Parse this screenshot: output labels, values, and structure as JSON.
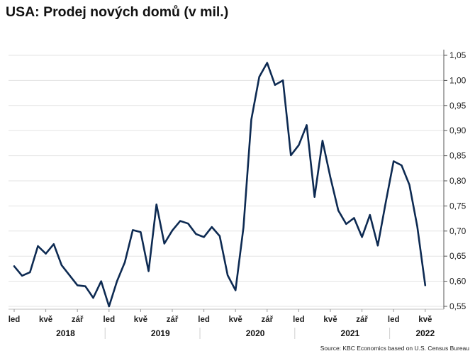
{
  "title": "USA: Prodej nových domů (v mil.)",
  "source": "Source: KBC Economics based on U.S. Census Bureau",
  "chart_data": {
    "type": "line",
    "title": "USA: Prodej nových domů (v mil.)",
    "line_color": "#0d2a52",
    "ylim": [
      0.55,
      1.05
    ],
    "y_ticks": [
      "0,55",
      "0,60",
      "0,65",
      "0,70",
      "0,75",
      "0,80",
      "0,85",
      "0,90",
      "0,95",
      "1,00",
      "1,05"
    ],
    "grid": true,
    "x_tick_labels": [
      {
        "index": 0,
        "label": "led"
      },
      {
        "index": 4,
        "label": "kvě"
      },
      {
        "index": 8,
        "label": "zář"
      },
      {
        "index": 12,
        "label": "led"
      },
      {
        "index": 16,
        "label": "kvě"
      },
      {
        "index": 20,
        "label": "zář"
      },
      {
        "index": 24,
        "label": "led"
      },
      {
        "index": 28,
        "label": "kvě"
      },
      {
        "index": 32,
        "label": "zář"
      },
      {
        "index": 36,
        "label": "led"
      },
      {
        "index": 40,
        "label": "kvě"
      },
      {
        "index": 44,
        "label": "zář"
      },
      {
        "index": 48,
        "label": "led"
      },
      {
        "index": 52,
        "label": "kvě"
      }
    ],
    "years": [
      {
        "label": "2018",
        "index": 6.5
      },
      {
        "label": "2019",
        "index": 18.5
      },
      {
        "label": "2020",
        "index": 30.5
      },
      {
        "label": "2021",
        "index": 42.5
      },
      {
        "label": "2022",
        "index": 52
      }
    ],
    "series": [
      {
        "values": [
          0.63,
          0.611,
          0.618,
          0.67,
          0.655,
          0.674,
          0.632,
          0.612,
          0.592,
          0.59,
          0.567,
          0.6,
          0.55,
          0.6,
          0.638,
          0.702,
          0.698,
          0.62,
          0.753,
          0.675,
          0.701,
          0.72,
          0.715,
          0.694,
          0.688,
          0.708,
          0.69,
          0.612,
          0.582,
          0.707,
          0.922,
          1.007,
          1.035,
          0.991,
          1.0,
          0.851,
          0.871,
          0.911,
          0.768,
          0.88,
          0.807,
          0.741,
          0.714,
          0.726,
          0.688,
          0.732,
          0.671,
          0.757,
          0.839,
          0.831,
          0.792,
          0.709,
          0.592
        ]
      }
    ]
  }
}
